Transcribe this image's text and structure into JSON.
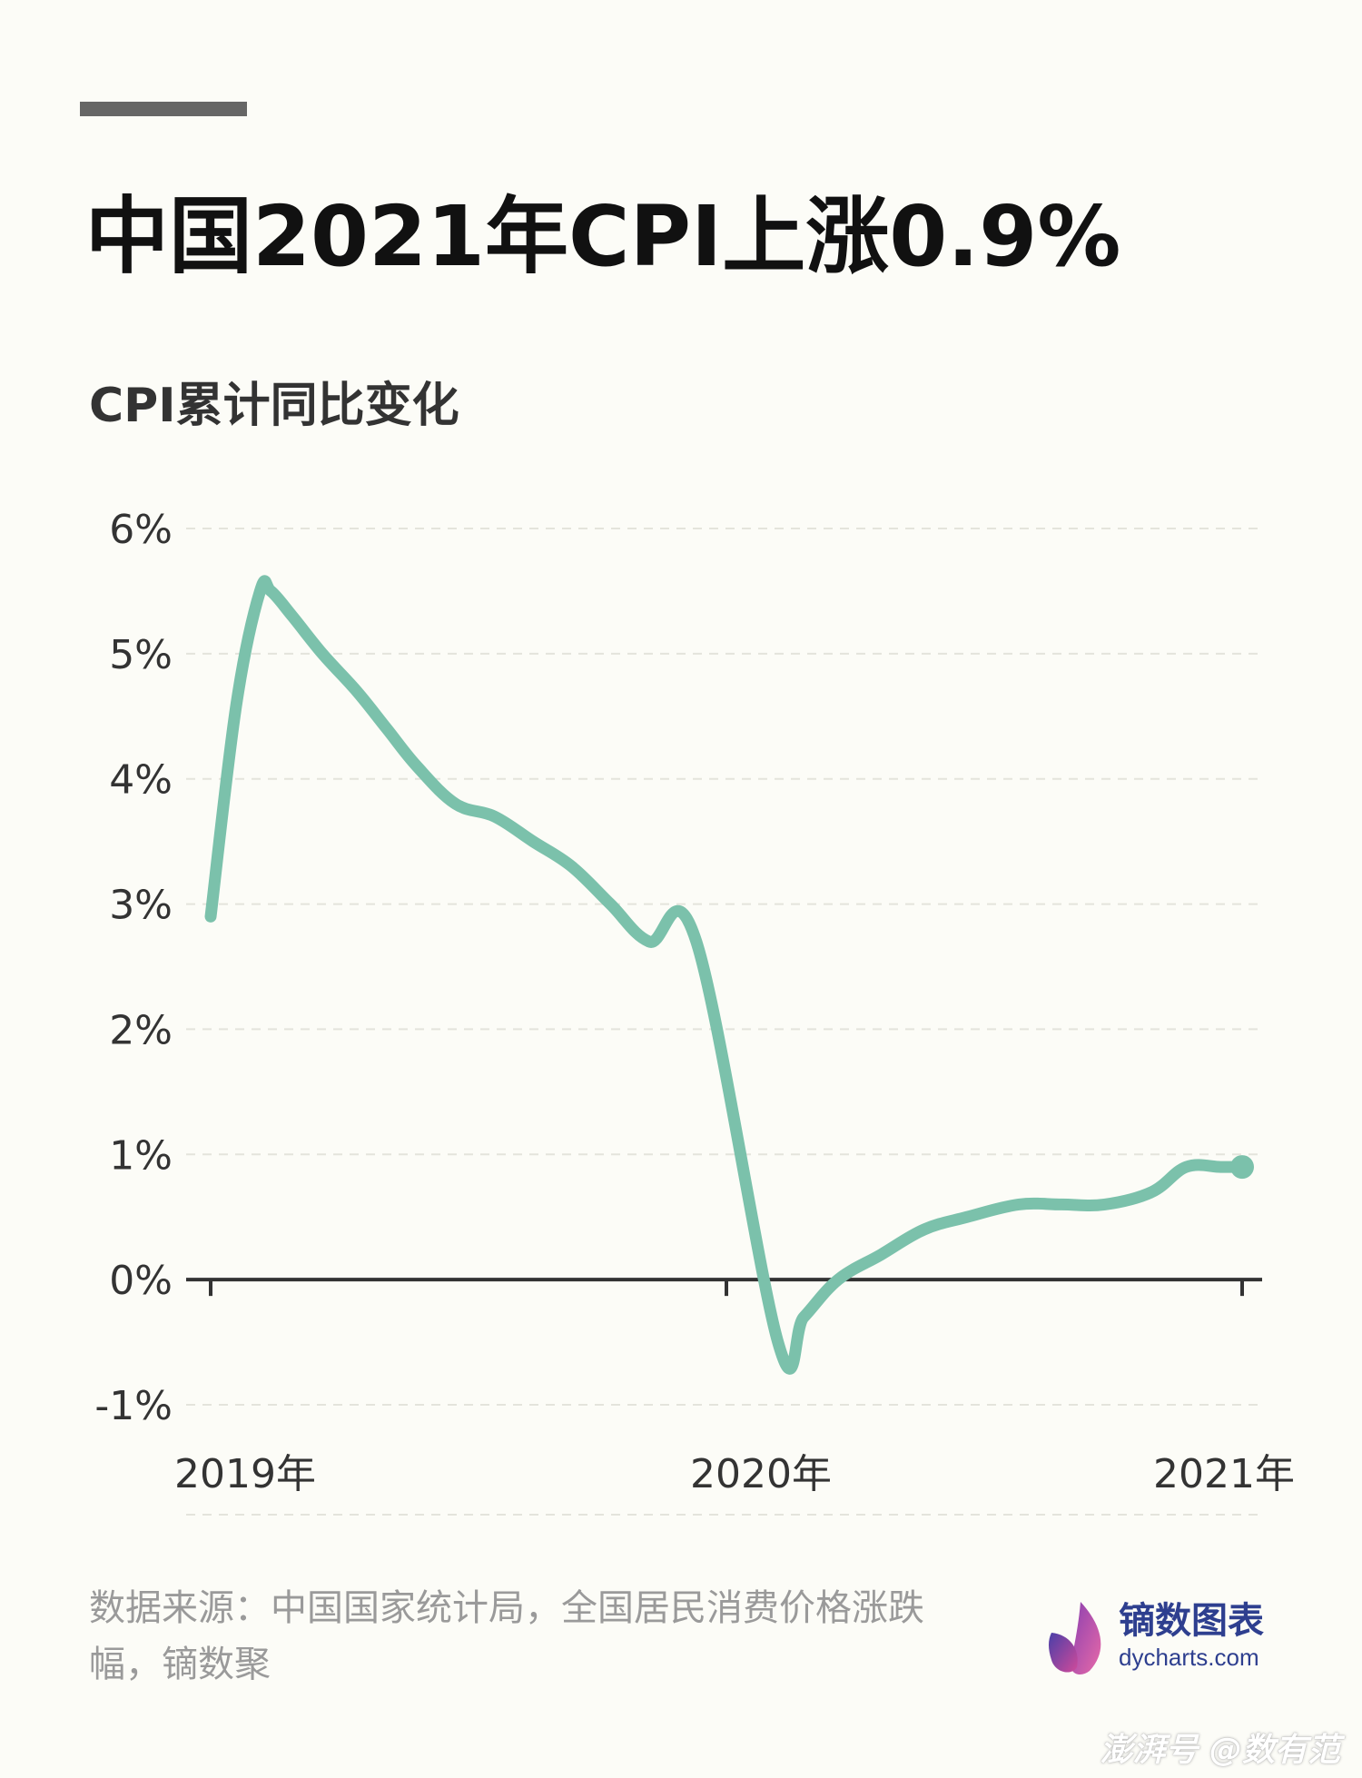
{
  "title": "中国2021年CPI上涨0.9%",
  "subtitle": "CPI累计同比变化",
  "source": "数据来源：中国国家统计局，全国居民消费价格涨跌幅，镝数聚",
  "logo": {
    "name": "镝数图表",
    "url": "dycharts.com"
  },
  "watermark": "澎湃号 @数有范",
  "colors": {
    "line": "#7bc1ab",
    "axis": "#333333",
    "grid": "#e4e4dc",
    "background": "#fcfcf7",
    "accent_bar": "#666666"
  },
  "chart_data": {
    "type": "line",
    "title": "中国2021年CPI上涨0.9%",
    "subtitle": "CPI累计同比变化",
    "xlabel": "",
    "ylabel": "",
    "x_ticks": [
      "2019年",
      "2020年",
      "2021年"
    ],
    "y_ticks": [
      "6%",
      "5%",
      "4%",
      "3%",
      "2%",
      "1%",
      "0%",
      "-1%"
    ],
    "ylim": [
      -1,
      6
    ],
    "xlim": [
      0,
      24
    ],
    "grid": true,
    "legend": "none",
    "series": [
      {
        "values": [
          2.9,
          4.6,
          5.5,
          5.5,
          5.3,
          5.0,
          4.7,
          4.4,
          4.1,
          3.8,
          3.7,
          3.5,
          3.3,
          3.0,
          2.7,
          2.7,
          -0.5,
          -0.3,
          0.0,
          0.2,
          0.4,
          0.5,
          0.6,
          0.6,
          0.6,
          0.7,
          0.9,
          0.9,
          0.9
        ]
      }
    ],
    "x": [
      0,
      0.6,
      1.15,
      1.4,
      1.9,
      2.6,
      3.4,
      4.1,
      4.8,
      5.7,
      6.6,
      7.5,
      8.4,
      9.3,
      10.2,
      11.3,
      13.2,
      13.8,
      14.6,
      15.6,
      16.6,
      17.6,
      18.8,
      19.8,
      20.8,
      21.9,
      22.7,
      23.5,
      24
    ]
  }
}
